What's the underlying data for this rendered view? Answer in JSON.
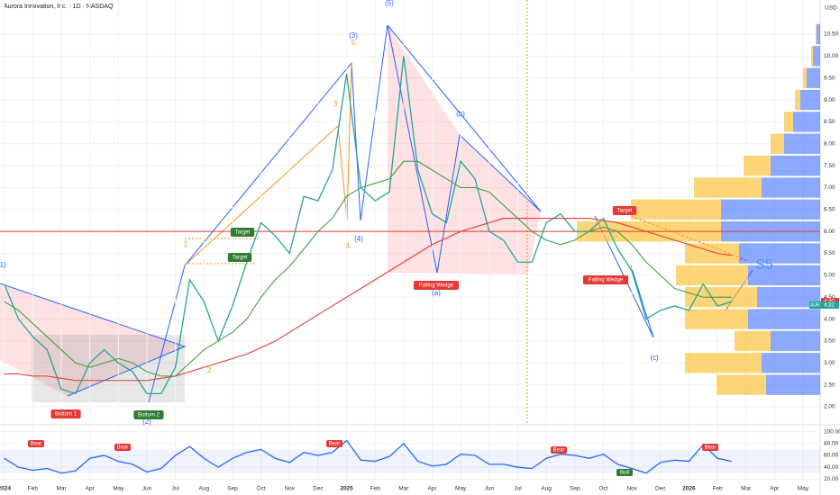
{
  "chart_data": [
    {
      "type": "line",
      "title": "Aurora Innovation, Inc. · 1D · NASDAQ",
      "currency": "USD",
      "x": [
        0,
        0.5,
        1,
        1.5,
        2,
        2.5,
        3,
        3.5,
        4,
        4.5,
        5,
        5.5,
        6,
        6.5,
        7,
        7.5,
        8,
        8.5,
        9,
        9.5,
        10,
        10.5,
        11,
        11.5,
        12,
        12.5,
        13,
        13.5,
        14,
        14.5,
        15,
        15.5,
        16,
        16.5,
        17,
        17.5,
        18,
        18.5,
        19,
        19.5,
        20,
        20.5,
        21,
        21.5,
        22,
        22.5,
        23,
        23.5,
        24,
        24.5,
        25,
        25.5
      ],
      "series": [
        {
          "color": "#26a69a",
          "values": [
            4.8,
            4.0,
            3.6,
            3.3,
            2.4,
            2.3,
            3.0,
            3.3,
            3.0,
            2.8,
            2.3,
            2.3,
            2.9,
            4.9,
            4.4,
            3.5,
            4.3,
            5.3,
            6.2,
            5.9,
            5.5,
            6.8,
            6.7,
            7.4,
            9.6,
            7.0,
            6.7,
            6.9,
            10.0,
            7.4,
            6.4,
            6.2,
            7.6,
            7.2,
            6.0,
            5.8,
            5.3,
            5.3,
            6.2,
            6.4,
            6.0,
            6.0,
            6.3,
            5.6,
            5.1,
            4.0,
            4.2,
            4.3,
            4.2,
            4.8,
            4.3,
            4.4
          ]
        },
        {
          "color": "#e53935",
          "values": [
            2.75,
            2.75,
            2.7,
            2.7,
            2.65,
            2.6,
            2.6,
            2.6,
            2.6,
            2.6,
            2.6,
            2.65,
            2.7,
            2.8,
            2.9,
            3.0,
            3.1,
            3.2,
            3.35,
            3.5,
            3.7,
            3.9,
            4.1,
            4.3,
            4.5,
            4.7,
            4.9,
            5.1,
            5.3,
            5.5,
            5.7,
            5.85,
            6.0,
            6.1,
            6.2,
            6.3,
            6.3,
            6.3,
            6.3,
            6.3,
            6.3,
            6.3,
            6.25,
            6.2,
            6.1,
            6.0,
            5.9,
            5.8,
            5.7,
            5.6,
            5.5,
            5.45
          ]
        },
        {
          "color": "#43a047",
          "values": [
            4.4,
            4.2,
            3.9,
            3.6,
            3.3,
            3.0,
            2.9,
            3.0,
            3.1,
            3.0,
            2.8,
            2.7,
            2.7,
            3.0,
            3.3,
            3.5,
            3.7,
            4.0,
            4.5,
            4.9,
            5.2,
            5.6,
            6.0,
            6.3,
            6.8,
            7.0,
            7.1,
            7.2,
            7.6,
            7.6,
            7.4,
            7.2,
            7.0,
            7.0,
            6.9,
            6.6,
            6.3,
            6.0,
            5.8,
            5.7,
            5.8,
            6.0,
            6.1,
            6.0,
            5.7,
            5.3,
            5.0,
            4.7,
            4.6,
            4.5,
            4.5,
            4.5
          ]
        }
      ],
      "hline": {
        "value": 6.0,
        "color": "#e53935"
      },
      "xlim": [
        -0.15,
        28.6
      ],
      "xticks": [
        {
          "value": 0,
          "label": "2024"
        },
        {
          "value": 1,
          "label": "Feb"
        },
        {
          "value": 2,
          "label": "Mar"
        },
        {
          "value": 3,
          "label": "Apr"
        },
        {
          "value": 4,
          "label": "May"
        },
        {
          "value": 5,
          "label": "Jun"
        },
        {
          "value": 6,
          "label": "Jul"
        },
        {
          "value": 7,
          "label": "Aug"
        },
        {
          "value": 8,
          "label": "Sep"
        },
        {
          "value": 9,
          "label": "Oct"
        },
        {
          "value": 10,
          "label": "Nov"
        },
        {
          "value": 11,
          "label": "Dec"
        },
        {
          "value": 12,
          "label": "2025"
        },
        {
          "value": 13,
          "label": "Feb"
        },
        {
          "value": 14,
          "label": "Mar"
        },
        {
          "value": 15,
          "label": "Apr"
        },
        {
          "value": 16,
          "label": "May"
        },
        {
          "value": 17,
          "label": "Jun"
        },
        {
          "value": 18,
          "label": "Jul"
        },
        {
          "value": 19,
          "label": "Aug"
        },
        {
          "value": 20,
          "label": "Sep"
        },
        {
          "value": 21,
          "label": "Oct"
        },
        {
          "value": 22,
          "label": "Nov"
        },
        {
          "value": 23,
          "label": "Dec"
        },
        {
          "value": 24,
          "label": "2026"
        },
        {
          "value": 25,
          "label": "Feb"
        },
        {
          "value": 26,
          "label": "Mar"
        },
        {
          "value": 27,
          "label": "Apr"
        },
        {
          "value": 28,
          "label": "May"
        }
      ],
      "ylim": [
        1.63,
        11.28
      ],
      "yticks": [
        {
          "value": 2,
          "label": "2.00"
        },
        {
          "value": 2.5,
          "label": "2.50"
        },
        {
          "value": 3,
          "label": "3.00"
        },
        {
          "value": 3.5,
          "label": "3.50"
        },
        {
          "value": 4,
          "label": "4.00"
        },
        {
          "value": 4.5,
          "label": "4.50"
        },
        {
          "value": 5,
          "label": "5.00"
        },
        {
          "value": 5.5,
          "label": "5.50"
        },
        {
          "value": 6,
          "label": "6.00"
        },
        {
          "value": 6.5,
          "label": "6.50"
        },
        {
          "value": 7,
          "label": "7.00"
        },
        {
          "value": 7.5,
          "label": "7.50"
        },
        {
          "value": 8,
          "label": "8.00"
        },
        {
          "value": 8.5,
          "label": "8.50"
        },
        {
          "value": 9,
          "label": "9.00"
        },
        {
          "value": 9.5,
          "label": "9.50"
        },
        {
          "value": 10,
          "label": "10.00"
        },
        {
          "value": 10.5,
          "label": "10.50"
        }
      ],
      "price_labels": [
        {
          "value": 4.4,
          "label": "4.40"
        },
        {
          "value": 4.32,
          "label": "4.32"
        }
      ],
      "ticker": "AUR",
      "volume_profile": {
        "levels": [
          2.5,
          3.0,
          3.5,
          4.0,
          4.5,
          5.0,
          5.5,
          6.0,
          6.5,
          7.0,
          7.5,
          8.0,
          8.5,
          9.0,
          9.5,
          10.0,
          10.5
        ],
        "up": [
          60,
          65,
          55,
          80,
          70,
          80,
          90,
          110,
          110,
          65,
          55,
          40,
          30,
          22,
          15,
          8,
          4
        ],
        "down": [
          55,
          85,
          40,
          70,
          80,
          80,
          60,
          160,
          100,
          75,
          30,
          15,
          10,
          6,
          4,
          2,
          1
        ]
      },
      "annotations": [
        "(5)",
        "(3)",
        "5",
        "3",
        "1",
        "2",
        "4",
        "(4)",
        "(b)",
        "(a)",
        "(c)",
        "(1)",
        "(2)",
        "Target",
        "Target",
        "Target",
        "Falling Wedge",
        "Falling Wedge",
        "Bottom 1",
        "Bottom 2",
        "S5"
      ]
    },
    {
      "type": "line",
      "x": [
        0,
        0.5,
        1,
        1.5,
        2,
        2.5,
        3,
        3.5,
        4,
        4.5,
        5,
        5.5,
        6,
        6.5,
        7,
        7.5,
        8,
        8.5,
        9,
        9.5,
        10,
        10.5,
        11,
        11.5,
        12,
        12.5,
        13,
        13.5,
        14,
        14.5,
        15,
        15.5,
        16,
        16.5,
        17,
        17.5,
        18,
        18.5,
        19,
        19.5,
        20,
        20.5,
        21,
        21.5,
        22,
        22.5,
        23,
        23.5,
        24,
        24.5,
        25,
        25.5
      ],
      "series": [
        {
          "color": "#2962ff",
          "values": [
            55,
            40,
            35,
            38,
            30,
            34,
            55,
            60,
            50,
            45,
            32,
            38,
            60,
            75,
            55,
            40,
            55,
            65,
            70,
            55,
            48,
            65,
            60,
            65,
            85,
            52,
            50,
            58,
            80,
            50,
            42,
            45,
            62,
            60,
            45,
            45,
            40,
            38,
            55,
            62,
            60,
            55,
            62,
            45,
            38,
            30,
            48,
            52,
            50,
            78,
            55,
            50
          ]
        }
      ],
      "band": [
        30,
        70
      ],
      "ylim": [
        16,
        110
      ],
      "yticks": [
        {
          "value": 20,
          "label": "20.00"
        },
        {
          "value": 40,
          "label": "40.00"
        },
        {
          "value": 60,
          "label": "60.00"
        },
        {
          "value": 80,
          "label": "80.00"
        },
        {
          "value": 100,
          "label": "100.00"
        }
      ],
      "annotations": [
        "Bear",
        "Bear",
        "Bear",
        "Bear",
        "Bear",
        "Bull"
      ]
    }
  ]
}
